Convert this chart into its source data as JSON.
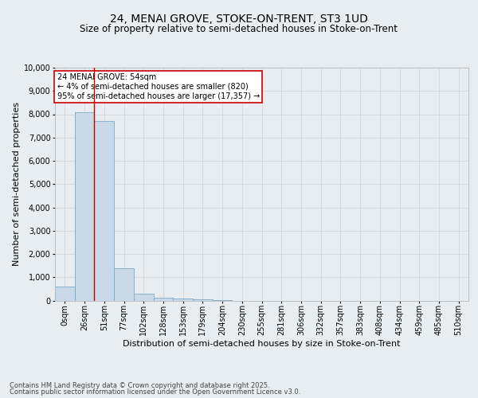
{
  "title": "24, MENAI GROVE, STOKE-ON-TRENT, ST3 1UD",
  "subtitle": "Size of property relative to semi-detached houses in Stoke-on-Trent",
  "xlabel": "Distribution of semi-detached houses by size in Stoke-on-Trent",
  "ylabel": "Number of semi-detached properties",
  "bar_labels": [
    "0sqm",
    "26sqm",
    "51sqm",
    "77sqm",
    "102sqm",
    "128sqm",
    "153sqm",
    "179sqm",
    "204sqm",
    "230sqm",
    "255sqm",
    "281sqm",
    "306sqm",
    "332sqm",
    "357sqm",
    "383sqm",
    "408sqm",
    "434sqm",
    "459sqm",
    "485sqm",
    "510sqm"
  ],
  "bar_values": [
    600,
    8100,
    7700,
    1400,
    280,
    130,
    80,
    50,
    10,
    0,
    0,
    0,
    0,
    0,
    0,
    0,
    0,
    0,
    0,
    0,
    0
  ],
  "bar_color": "#c9d9e8",
  "bar_edge_color": "#7eaac9",
  "grid_color": "#d0d4d8",
  "bg_color": "#e8edf2",
  "plot_bg_color": "#e8edf2",
  "vline_color": "#cc0000",
  "vline_x_index": 1.5,
  "annotation_text": "24 MENAI GROVE: 54sqm\n← 4% of semi-detached houses are smaller (820)\n95% of semi-detached houses are larger (17,357) →",
  "annotation_box_facecolor": "#ffffff",
  "annotation_box_edgecolor": "#cc0000",
  "footer_line1": "Contains HM Land Registry data © Crown copyright and database right 2025.",
  "footer_line2": "Contains public sector information licensed under the Open Government Licence v3.0.",
  "ylim": [
    0,
    10000
  ],
  "yticks": [
    0,
    1000,
    2000,
    3000,
    4000,
    5000,
    6000,
    7000,
    8000,
    9000,
    10000
  ],
  "title_fontsize": 10,
  "subtitle_fontsize": 8.5,
  "ylabel_fontsize": 8,
  "xlabel_fontsize": 8,
  "tick_fontsize": 7,
  "annotation_fontsize": 7,
  "footer_fontsize": 6
}
